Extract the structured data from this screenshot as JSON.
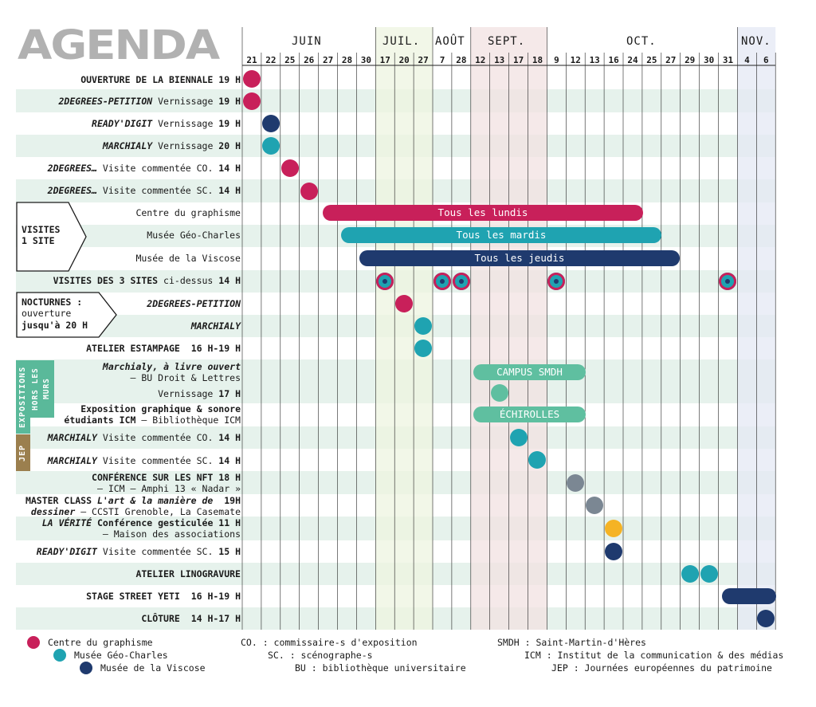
{
  "title": "AGENDA",
  "colors": {
    "centre": "#c8205a",
    "geo": "#1fa3b1",
    "viscose": "#1f3a6e",
    "campus": "#5fbfa0",
    "grey": "#7b8793",
    "yellow": "#f5b324",
    "band_jul": "#eef4e0",
    "band_sep": "#f1e2e2",
    "band_nov": "#e4e8f4",
    "row_stripe": "#e6f2ec",
    "sidebar_green": "#5ab99a",
    "sidebar_brown": "#9b7f4e"
  },
  "months": [
    "JUIN",
    "JUIL.",
    "AOÛT",
    "SEPT.",
    "OCT.",
    "NOV."
  ],
  "days": [
    "21",
    "22",
    "25",
    "26",
    "27",
    "28",
    "30",
    "17",
    "20",
    "27",
    "7",
    "28",
    "12",
    "13",
    "17",
    "18",
    "9",
    "12",
    "13",
    "16",
    "24",
    "25",
    "27",
    "29",
    "30",
    "31",
    "4",
    "6"
  ],
  "rows": {
    "r0": {
      "main": "OUVERTURE DE LA BIENNALE",
      "time": "19 H"
    },
    "r1": {
      "main": "2DEGREES-PETITION",
      "rest": " Vernissage ",
      "time": "19 H"
    },
    "r2": {
      "main": "READY'DIGIT",
      "rest": " Vernissage ",
      "time": "19 H"
    },
    "r3": {
      "main": "MARCHIALY",
      "rest": " Vernissage ",
      "time": "20 H"
    },
    "r4": {
      "main": "2DEGREES…",
      "rest": " Visite commentée CO. ",
      "time": "14 H"
    },
    "r5": {
      "main": "2DEGREES…",
      "rest": " Visite commentée SC. ",
      "time": "14 H"
    },
    "r6": "Centre du graphisme",
    "r7": "Musée Géo-Charles",
    "r8": "Musée de la Viscose",
    "visites_badge": [
      "VISITES",
      "1 SITE"
    ],
    "r9": {
      "main": "VISITES DES 3 SITES",
      "rest": " ci-dessus ",
      "time": "14 H"
    },
    "nocturnes": [
      "NOCTURNES :",
      "ouverture",
      "jusqu'à 20 H"
    ],
    "r10": "2DEGREES-PETITION",
    "r11": "MARCHIALY",
    "r12": {
      "main": "ATELIER ESTAMPAGE",
      "time": "16 H-19 H"
    },
    "r13a": "Marchialy, à livre ouvert",
    "r13b": "– BU Droit & Lettres",
    "r13c": {
      "rest": "Vernissage ",
      "time": "17 H"
    },
    "r14a": "Exposition graphique & sonore",
    "r14b": {
      "main": "étudiants ICM",
      "rest": " – Bibliothèque ICM"
    },
    "r15": {
      "main": "MARCHIALY",
      "rest": " Visite commentée CO. ",
      "time": "14 H"
    },
    "r16": {
      "main": "MARCHIALY",
      "rest": " Visite commentée SC. ",
      "time": "14 H"
    },
    "r17a": {
      "main": "CONFÉRENCE SUR LES NFT",
      "time": "18 H"
    },
    "r17b": "– ICM – Amphi 13 « Nadar »",
    "r18a": {
      "main": "MASTER CLASS",
      "italic": " L'art & la manière de",
      "time": "19H"
    },
    "r18b": {
      "italic": "dessiner",
      "rest": " – CCSTI Grenoble, La Casemate"
    },
    "r19a": {
      "main": "LA VÉRITÉ",
      "rest": " Conférence gesticulée ",
      "time": "11 H"
    },
    "r19b": "– Maison des associations",
    "r20": {
      "main": "READY'DIGIT",
      "rest": " Visite commentée SC. ",
      "time": "15 H"
    },
    "r21": "ATELIER LINOGRAVURE",
    "r22": {
      "main": "STAGE STREET YETI",
      "time": "16 H-19 H"
    },
    "r23": {
      "main": "CLÔTURE",
      "time": "14 H-17 H"
    }
  },
  "sidebar": {
    "expositions": "EXPOSITIONS",
    "hors_murs": "HORS LES MURS",
    "jep": "JEP"
  },
  "pills": {
    "lundis": "Tous les lundis",
    "mardis": "Tous les mardis",
    "jeudis": "Tous les jeudis",
    "campus": "CAMPUS SMDH",
    "echirolles": "ÉCHIROLLES"
  },
  "legend": {
    "centre": "Centre du graphisme",
    "geo": "Musée Géo-Charles",
    "viscose": "Musée de la Viscose",
    "co": "CO. : commissaire-s d'exposition",
    "sc": "SC. : scénographe-s",
    "bu": "BU : bibliothèque universitaire",
    "smdh": "SMDH : Saint-Martin-d'Hères",
    "icm": "ICM : Institut de la communication & des médias",
    "jep": "JEP : Journées européennes du patrimoine"
  }
}
